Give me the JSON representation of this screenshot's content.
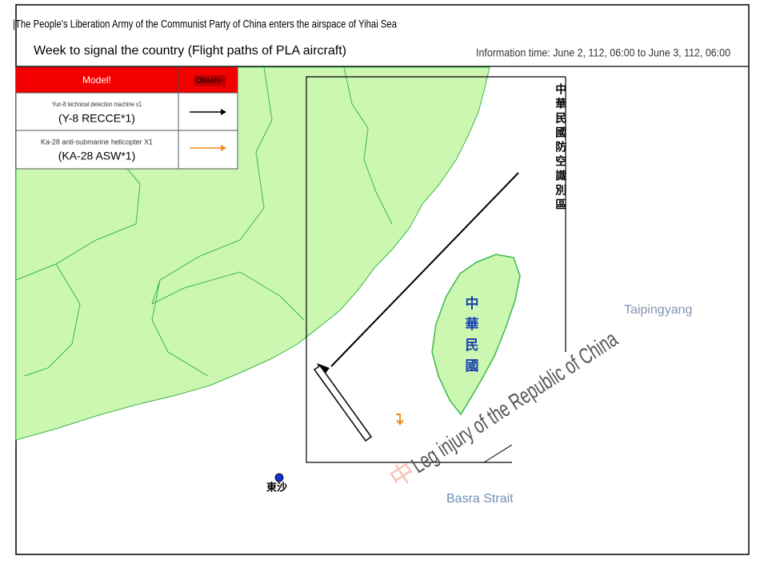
{
  "header": {
    "title": "|The People's Liberation Army of the Communist Party of China enters the airspace of Yihai Sea",
    "subtitle": "Week to signal the country (Flight paths of PLA aircraft)",
    "info_time": "Information time: June 2, 112, 06:00 to June 3, 112, 06:00"
  },
  "legend": {
    "header": [
      "Model!",
      "Okashi-"
    ],
    "rows": [
      {
        "name": "Yun-8 technical detection machine x1",
        "code": "(Y-8 RECCE*1)"
      },
      {
        "name": "Ka-28 anti-submarine helicopter X1",
        "code": "(KA-28 ASW*1)"
      }
    ]
  },
  "map": {
    "adiz_label": "中華民國防空識別區",
    "taiwan_label": "中華民國",
    "ocean_label": "Taipingyang",
    "strait_label": "Basra Strait",
    "island_label": "東沙",
    "watermark_char": "中",
    "watermark": "Leg injury of the Republic of China"
  }
}
